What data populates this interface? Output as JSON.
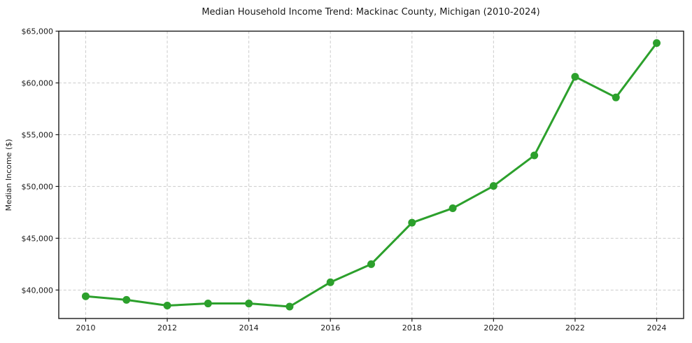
{
  "chart_data": {
    "type": "line",
    "title": "Median Household Income Trend: Mackinac County, Michigan (2010-2024)",
    "xlabel": "",
    "ylabel": "Median Income ($)",
    "x": [
      2010,
      2011,
      2012,
      2013,
      2014,
      2015,
      2016,
      2017,
      2018,
      2019,
      2020,
      2021,
      2022,
      2023,
      2024
    ],
    "values": [
      39400,
      39050,
      38500,
      38700,
      38700,
      38400,
      40750,
      42500,
      46500,
      47900,
      50050,
      53000,
      60600,
      58600,
      63850
    ],
    "series_name": "Median Household Income",
    "xlim": [
      2009.34,
      2024.66
    ],
    "ylim": [
      37250,
      65000
    ],
    "xticks": [
      2010,
      2012,
      2014,
      2016,
      2018,
      2020,
      2022,
      2024
    ],
    "xtick_labels": [
      "2010",
      "2012",
      "2014",
      "2016",
      "2018",
      "2020",
      "2022",
      "2024"
    ],
    "yticks": [
      40000,
      45000,
      50000,
      55000,
      60000,
      65000
    ],
    "ytick_labels": [
      "$40,000",
      "$45,000",
      "$50,000",
      "$55,000",
      "$60,000",
      "$65,000"
    ],
    "grid": true,
    "grid_style": "dashed",
    "legend": "none",
    "colors": {
      "line": "#2ca02c",
      "marker": "#2ca02c",
      "grid": "#cccccc",
      "spine": "#1a1a1a",
      "background": "#ffffff",
      "text": "#1a1a1a"
    }
  }
}
